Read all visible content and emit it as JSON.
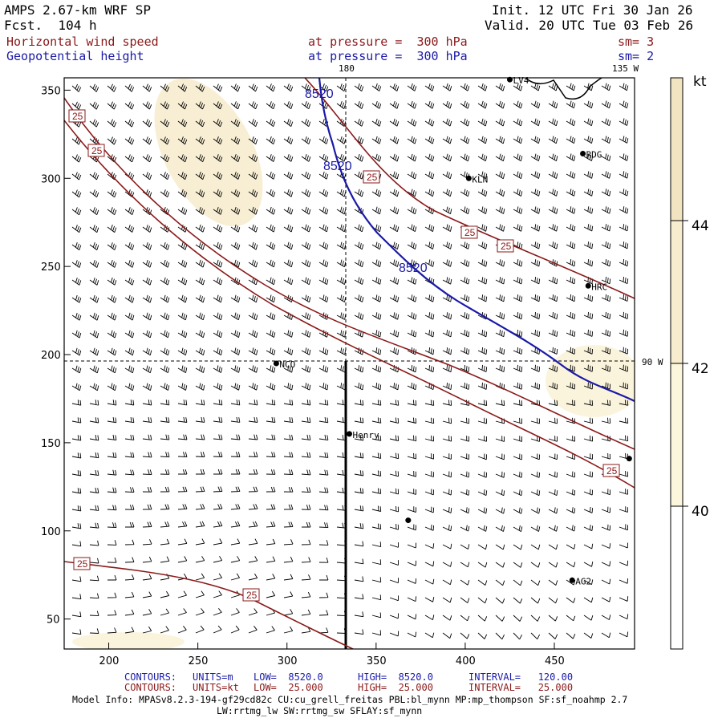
{
  "header": {
    "model": "AMPS 2.67-km WRF SP",
    "fcst": "Fcst.  104 h",
    "init": "Init. 12 UTC Fri 30 Jan 26",
    "valid": "Valid. 20 UTC Tue 03 Feb 26",
    "field1_name": "Horizontal wind speed",
    "field1_level": "at pressure =  300 hPa",
    "field1_sm": "sm= 3",
    "field2_name": "Geopotential height",
    "field2_level": "at pressure =  300 hPa",
    "field2_sm": "sm= 2"
  },
  "axes": {
    "x_ticks": [
      200,
      250,
      300,
      350,
      400,
      450
    ],
    "y_ticks": [
      50,
      100,
      150,
      200,
      250,
      300,
      350
    ],
    "x_range": [
      175,
      495
    ],
    "y_range": [
      33,
      357
    ],
    "lon_labels": {
      "top_center": "180",
      "top_right": "135 W",
      "right": "90 W"
    }
  },
  "colorbar": {
    "unit": "kt",
    "ticks": [
      "40",
      "42",
      "44"
    ],
    "colors": [
      "#ffffff",
      "#fbf6dc",
      "#f7ecce",
      "#f3e4c1"
    ]
  },
  "stations": [
    {
      "name": "LV4",
      "x": 425,
      "y": 356
    },
    {
      "name": "RDG",
      "x": 466,
      "y": 314
    },
    {
      "name": "KLN",
      "x": 402,
      "y": 300
    },
    {
      "name": "HRC",
      "x": 469,
      "y": 239
    },
    {
      "name": "NCO",
      "x": 294,
      "y": 195
    },
    {
      "name": "Henry",
      "x": 335,
      "y": 155
    },
    {
      "name": "AG2",
      "x": 460,
      "y": 72
    },
    {
      "name": "",
      "x": 492,
      "y": 141
    },
    {
      "name": "",
      "x": 368,
      "y": 106
    }
  ],
  "contour_labels": {
    "height": "8520",
    "speed": "25"
  },
  "footer": {
    "row1_label": "CONTOURS:",
    "row1_units": "UNITS=m",
    "row1_low": "LOW=  8520.0",
    "row1_high": "HIGH=  8520.0",
    "row1_interval": "INTERVAL=   120.00",
    "row2_label": "CONTOURS:",
    "row2_units": "UNITS=kt",
    "row2_low": "LOW=  25.000",
    "row2_high": "HIGH=  25.000",
    "row2_interval": "INTERVAL=   25.000",
    "model_info": "Model Info: MPASv8.2.3-194-gf29cd82c CU:cu_grell_freitas PBL:bl_mynn MP:mp_thompson SF:sf_noahmp 2.7",
    "model_info2": "LW:rrtmg_lw SW:rrtmg_sw SFLAY:sf_mynn"
  },
  "colors": {
    "height_contour": "#1a1aa8",
    "speed_contour": "#8b1a1a",
    "barb": "#000000"
  }
}
